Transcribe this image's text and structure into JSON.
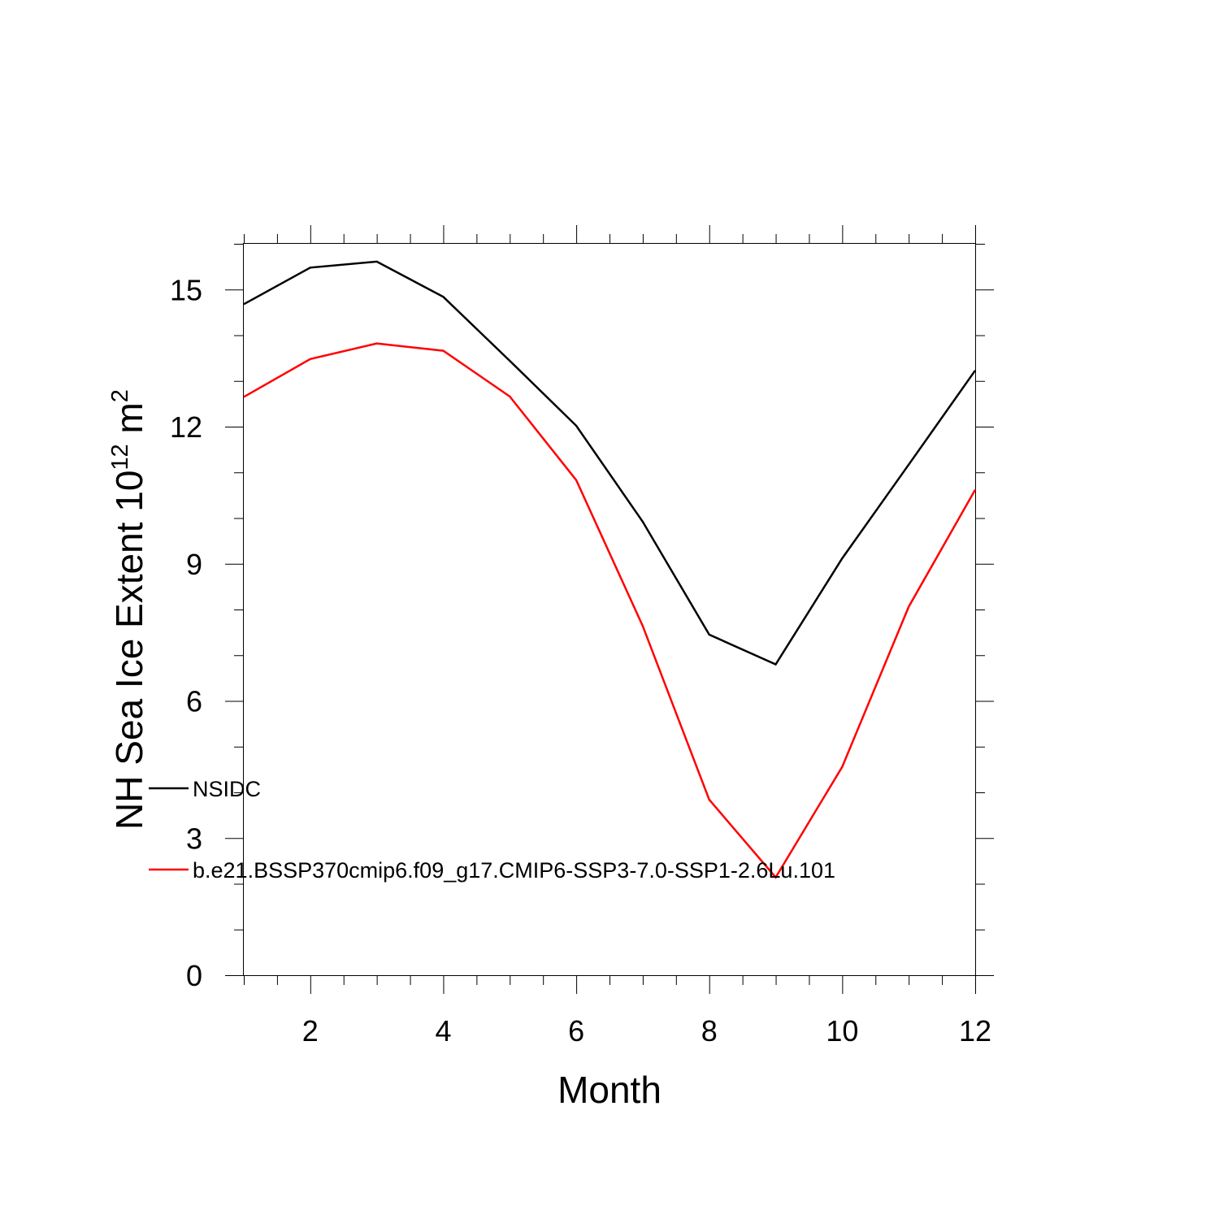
{
  "chart_data": {
    "type": "line",
    "title": "",
    "xlabel": "Month",
    "ylabel_main": "NH Sea Ice Extent 10",
    "ylabel_exp": "12",
    "ylabel_unit": " m",
    "ylabel_unit_exp": "2",
    "xlim": [
      1,
      12
    ],
    "ylim": [
      0,
      16
    ],
    "x_major_ticks": [
      2,
      4,
      6,
      8,
      10,
      12
    ],
    "x_minor_step": 0.5,
    "y_major_ticks": [
      0,
      3,
      6,
      9,
      12,
      15
    ],
    "y_minor_step": 1,
    "grid": false,
    "legend_placement": "lower-left",
    "x": [
      1,
      2,
      3,
      4,
      5,
      6,
      7,
      8,
      9,
      10,
      11,
      12
    ],
    "series": [
      {
        "name": "NSIDC",
        "color": "#000000",
        "values": [
          14.68,
          15.48,
          15.61,
          14.84,
          13.44,
          12.02,
          9.92,
          7.45,
          6.8,
          9.12,
          11.17,
          13.23
        ]
      },
      {
        "name": "b.e21.BSSP370cmip6.f09_g17.CMIP6-SSP3-7.0-SSP1-2.6Lu.101",
        "color": "#ff0000",
        "values": [
          12.65,
          13.48,
          13.82,
          13.66,
          12.66,
          10.83,
          7.64,
          3.84,
          2.14,
          4.56,
          8.06,
          10.62
        ]
      }
    ]
  }
}
